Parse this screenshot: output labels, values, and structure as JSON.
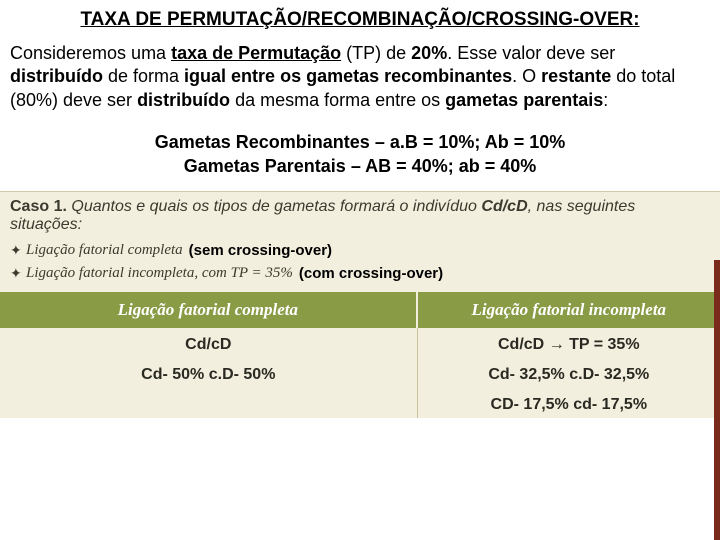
{
  "title": "TAXA DE PERMUTAÇÃO/RECOMBINAÇÃO/CROSSING-OVER:",
  "paragraph": {
    "pre1": "Consideremos uma ",
    "tp_label": "taxa de Permutação",
    "pre2": " (TP) de ",
    "tp_value": "20%",
    "p3": ". Esse valor deve ser ",
    "dist": "distribuído",
    "p4": " de forma ",
    "igual": "igual entre os gametas recombinantes",
    "p5": ". O ",
    "restante": "restante",
    "p6": " do total (80%) deve ser ",
    "dist2": "distribuído",
    "p7": " da mesma forma entre os ",
    "parentais": "gametas parentais",
    "p8": ":"
  },
  "gametes": {
    "line1": "Gametas Recombinantes – a.B = 10%;  Ab = 10%",
    "line2": "Gametas Parentais – AB = 40%;  ab = 40%"
  },
  "caso": {
    "prefix": "Caso 1.",
    "question": " Quantos e quais os tipos de gametas formará o indivíduo ",
    "genotype": "Cd/cD",
    "suffix": ", nas seguintes situações:",
    "items": [
      {
        "label": "Ligação fatorial completa",
        "annot": "(sem crossing-over)"
      },
      {
        "label": "Ligação fatorial incompleta, com TP = 35%",
        "annot": "(com crossing-over)"
      }
    ]
  },
  "table": {
    "header_bg": "#8a9b46",
    "body_bg": "#f2efde",
    "columns": [
      "Ligação fatorial completa",
      "Ligação fatorial incompleta"
    ],
    "rows": [
      {
        "left": "Cd/cD",
        "right_a": "Cd/cD",
        "right_b": "TP = 35%"
      },
      {
        "left": "Cd- 50%   c.D- 50%",
        "right_a": "Cd- 32,5%   c.D- 32,5%",
        "right_b": ""
      },
      {
        "left": "",
        "right_a": "CD- 17,5%   cd- 17,5%",
        "right_b": ""
      }
    ]
  }
}
